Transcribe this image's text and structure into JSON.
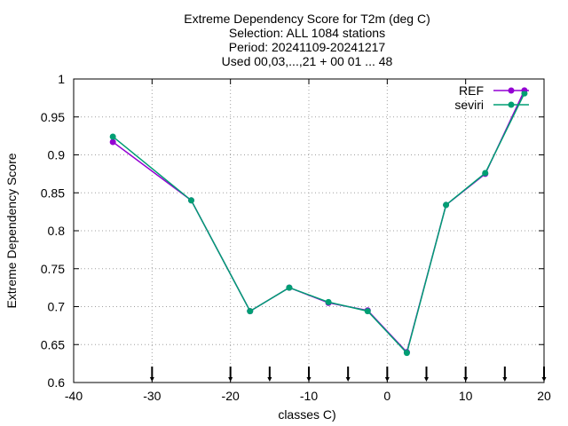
{
  "chart_data": {
    "type": "line",
    "title_lines": [
      "Extreme Dependency Score  for T2m (deg C)",
      "Selection: ALL   1084 stations",
      "Period: 20241109-20241217",
      "Used 00,03,...,21 + 00 01 ... 48"
    ],
    "xlabel": "classes C)",
    "ylabel": "Extreme Dependency Score",
    "xlim": [
      -40,
      20
    ],
    "ylim": [
      0.6,
      1.0
    ],
    "xticks": [
      -40,
      -30,
      -20,
      -10,
      0,
      10,
      20
    ],
    "xtick_labels": [
      "-40",
      "-30",
      "-20",
      "-10",
      "0",
      "10",
      "20"
    ],
    "yticks": [
      0.6,
      0.65,
      0.7,
      0.75,
      0.8,
      0.85,
      0.9,
      0.95,
      1.0
    ],
    "ytick_labels": [
      "0.6",
      "0.65",
      "0.7",
      "0.75",
      "0.8",
      "0.85",
      "0.9",
      "0.95",
      "1"
    ],
    "grid": true,
    "legend_position": "top-right",
    "class_boundaries": [
      -30,
      -20,
      -15,
      -10,
      -5,
      0,
      5,
      10,
      15,
      20
    ],
    "series": [
      {
        "name": "REF",
        "color": "#9400d3",
        "x": [
          -35,
          -25,
          -17.5,
          -12.5,
          -7.5,
          -2.5,
          2.5,
          7.5,
          12.5,
          17.5
        ],
        "y": [
          0.917,
          0.84,
          0.694,
          0.725,
          0.705,
          0.695,
          0.64,
          0.834,
          0.875,
          0.985
        ]
      },
      {
        "name": "seviri",
        "color": "#009e73",
        "x": [
          -35,
          -25,
          -17.5,
          -12.5,
          -7.5,
          -2.5,
          2.5,
          7.5,
          12.5,
          17.5
        ],
        "y": [
          0.924,
          0.84,
          0.694,
          0.725,
          0.706,
          0.694,
          0.639,
          0.834,
          0.876,
          0.981
        ]
      }
    ]
  }
}
